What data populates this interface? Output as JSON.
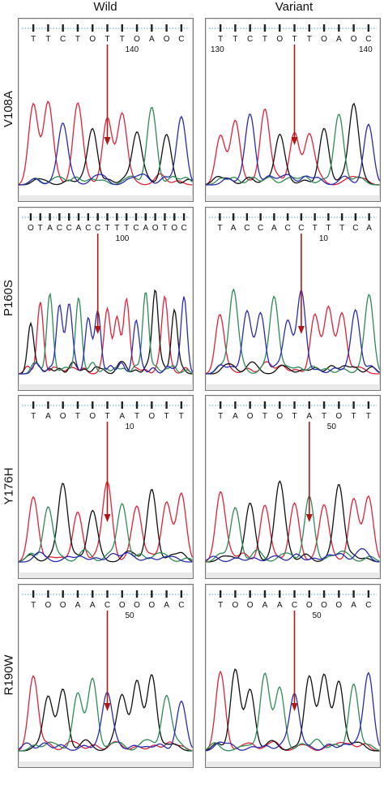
{
  "columns": [
    "Wild",
    "Variant"
  ],
  "colors": {
    "A": "#2e8b57",
    "C": "#2b2bb0",
    "G": "#111111",
    "T": "#e0223a",
    "arrow": "#b01818",
    "guide": "#4aa8c8"
  },
  "rows": [
    {
      "label": "V108A",
      "wild": {
        "bases": "TTCTOTTOAOC",
        "position": "140",
        "arrow_peak": 5
      },
      "variant": {
        "bases": "TTCTOTTOAOC",
        "position_left": "130",
        "position_right": "140",
        "arrow_peak": 5
      }
    },
    {
      "label": "P160S",
      "wild": {
        "bases": "OTACCACCTTTCAOTOC",
        "position": "100",
        "arrow_peak": 7
      },
      "variant": {
        "bases": "TACCACCTTTCA",
        "position": "10",
        "arrow_peak": 6
      }
    },
    {
      "label": "Y176H",
      "wild": {
        "bases": "TAOTOTATOTT",
        "position": "10",
        "arrow_peak": 5
      },
      "variant": {
        "bases": "TAOTOTATOTT",
        "position": "50",
        "arrow_peak": 6
      }
    },
    {
      "label": "R190W",
      "wild": {
        "bases": "TOOAACOOOAC",
        "position": "50",
        "arrow_peak": 5
      },
      "variant": {
        "bases": "TOOAACOOOAC",
        "position": "50",
        "arrow_peak": 5
      }
    }
  ]
}
